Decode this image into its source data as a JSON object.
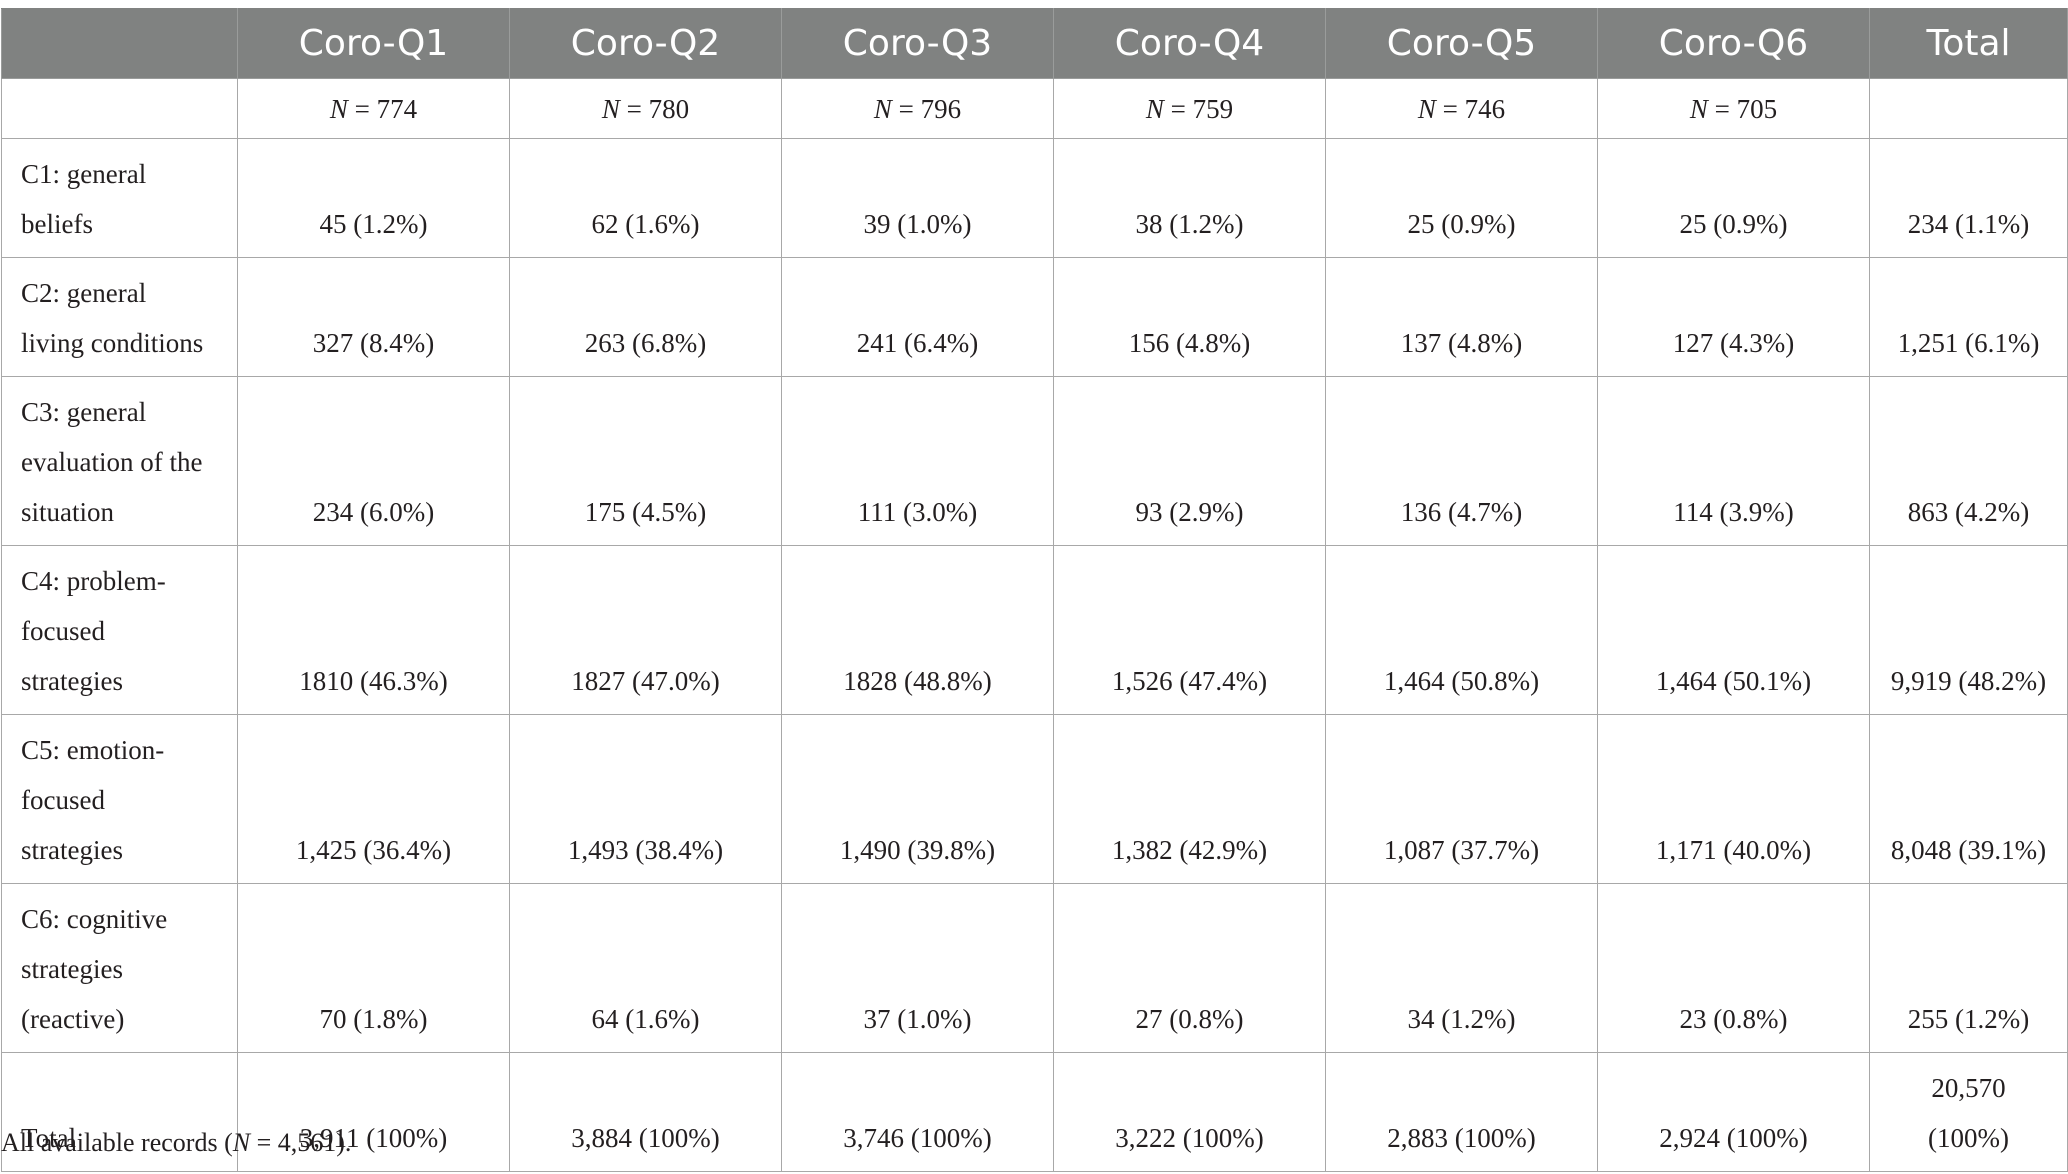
{
  "table": {
    "columns": [
      "",
      "Coro-Q1",
      "Coro-Q2",
      "Coro-Q3",
      "Coro-Q4",
      "Coro-Q5",
      "Coro-Q6",
      "Total"
    ],
    "n_row": [
      {
        "n": "N",
        "eq": " = ",
        "value": "774"
      },
      {
        "n": "N",
        "eq": " = ",
        "value": "780"
      },
      {
        "n": "N",
        "eq": " = ",
        "value": "796"
      },
      {
        "n": "N",
        "eq": " = ",
        "value": "759"
      },
      {
        "n": "N",
        "eq": " = ",
        "value": "746"
      },
      {
        "n": "N",
        "eq": " = ",
        "value": "705"
      }
    ],
    "rows": [
      {
        "label_lines": [
          "C1: general",
          "beliefs"
        ],
        "cells": [
          "45 (1.2%)",
          "62 (1.6%)",
          "39 (1.0%)",
          "38 (1.2%)",
          "25 (0.9%)",
          "25 (0.9%)",
          "234 (1.1%)"
        ]
      },
      {
        "label_lines": [
          "C2: general",
          "living conditions"
        ],
        "cells": [
          "327 (8.4%)",
          "263 (6.8%)",
          "241 (6.4%)",
          "156 (4.8%)",
          "137 (4.8%)",
          "127 (4.3%)",
          "1,251 (6.1%)"
        ]
      },
      {
        "label_lines": [
          "C3: general",
          "evaluation of the",
          "situation"
        ],
        "cells": [
          "234 (6.0%)",
          "175 (4.5%)",
          "111 (3.0%)",
          "93 (2.9%)",
          "136 (4.7%)",
          "114 (3.9%)",
          "863 (4.2%)"
        ]
      },
      {
        "label_lines": [
          "C4: problem-",
          "focused",
          "strategies"
        ],
        "cells": [
          "1810 (46.3%)",
          "1827 (47.0%)",
          "1828 (48.8%)",
          "1,526 (47.4%)",
          "1,464 (50.8%)",
          "1,464 (50.1%)",
          "9,919 (48.2%)"
        ]
      },
      {
        "label_lines": [
          "C5: emotion-",
          "focused",
          "strategies"
        ],
        "cells": [
          "1,425 (36.4%)",
          "1,493 (38.4%)",
          "1,490 (39.8%)",
          "1,382 (42.9%)",
          "1,087 (37.7%)",
          "1,171 (40.0%)",
          "8,048 (39.1%)"
        ]
      },
      {
        "label_lines": [
          "C6: cognitive",
          "strategies",
          "(reactive)"
        ],
        "cells": [
          "70 (1.8%)",
          "64 (1.6%)",
          "37 (1.0%)",
          "27 (0.8%)",
          "34 (1.2%)",
          "23 (0.8%)",
          "255 (1.2%)"
        ]
      }
    ],
    "total_row": {
      "label": "Total",
      "cells": [
        "3,911 (100%)",
        "3,884 (100%)",
        "3,746 (100%)",
        "3,222 (100%)",
        "2,883 (100%)",
        "2,924 (100%)"
      ],
      "grand_total_lines": [
        "20,570",
        "(100%)"
      ]
    }
  },
  "footnote": {
    "prefix": "All available records (",
    "n": "N",
    "suffix": " = 4,561)."
  },
  "colors": {
    "header_bg": "#808281",
    "header_text": "#ffffff",
    "grid": "#a8a8a8",
    "text": "#231f20"
  }
}
